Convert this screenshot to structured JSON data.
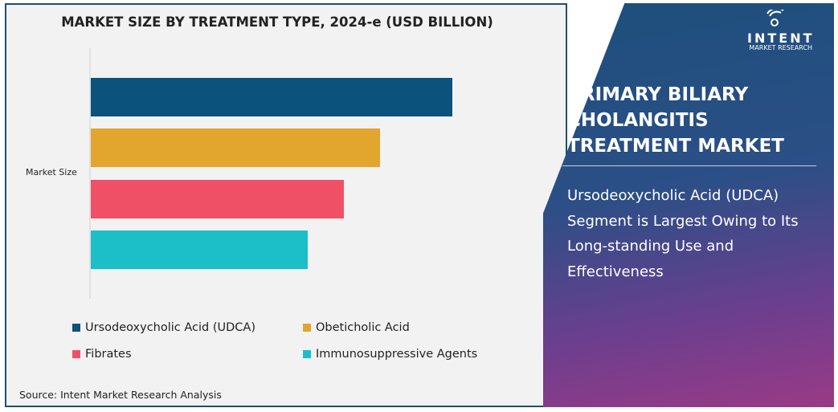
{
  "chart_data": {
    "type": "bar",
    "orientation": "horizontal",
    "title": "MARKET SIZE BY TREATMENT TYPE, 2024-e (USD BILLION)",
    "categories": [
      "Market Size"
    ],
    "series": [
      {
        "name": "Ursodeoxycholic Acid (UDCA)",
        "values": [
          100
        ],
        "color": "#0b527c"
      },
      {
        "name": "Obeticholic Acid",
        "values": [
          80
        ],
        "color": "#e2a52e"
      },
      {
        "name": "Fibrates",
        "values": [
          70
        ],
        "color": "#ef5066"
      },
      {
        "name": "Immunosuppressive Agents",
        "values": [
          60
        ],
        "color": "#1cbfc8"
      }
    ],
    "xlim": [
      0,
      100
    ],
    "grid": false,
    "legend_placement": "bottom"
  },
  "source": "Source: Intent Market Research Analysis",
  "panel": {
    "title_lines": [
      "PRIMARY BILIARY",
      "CHOLANGITIS",
      "TREATMENT MARKET"
    ],
    "subtitle": "Ursodeoxycholic Acid (UDCA) Segment is Largest Owing to Its Long-standing Use and Effectiveness"
  },
  "logo": {
    "name": "INTENT",
    "tagline": "MARKET RESEARCH",
    "tm": "TM"
  }
}
